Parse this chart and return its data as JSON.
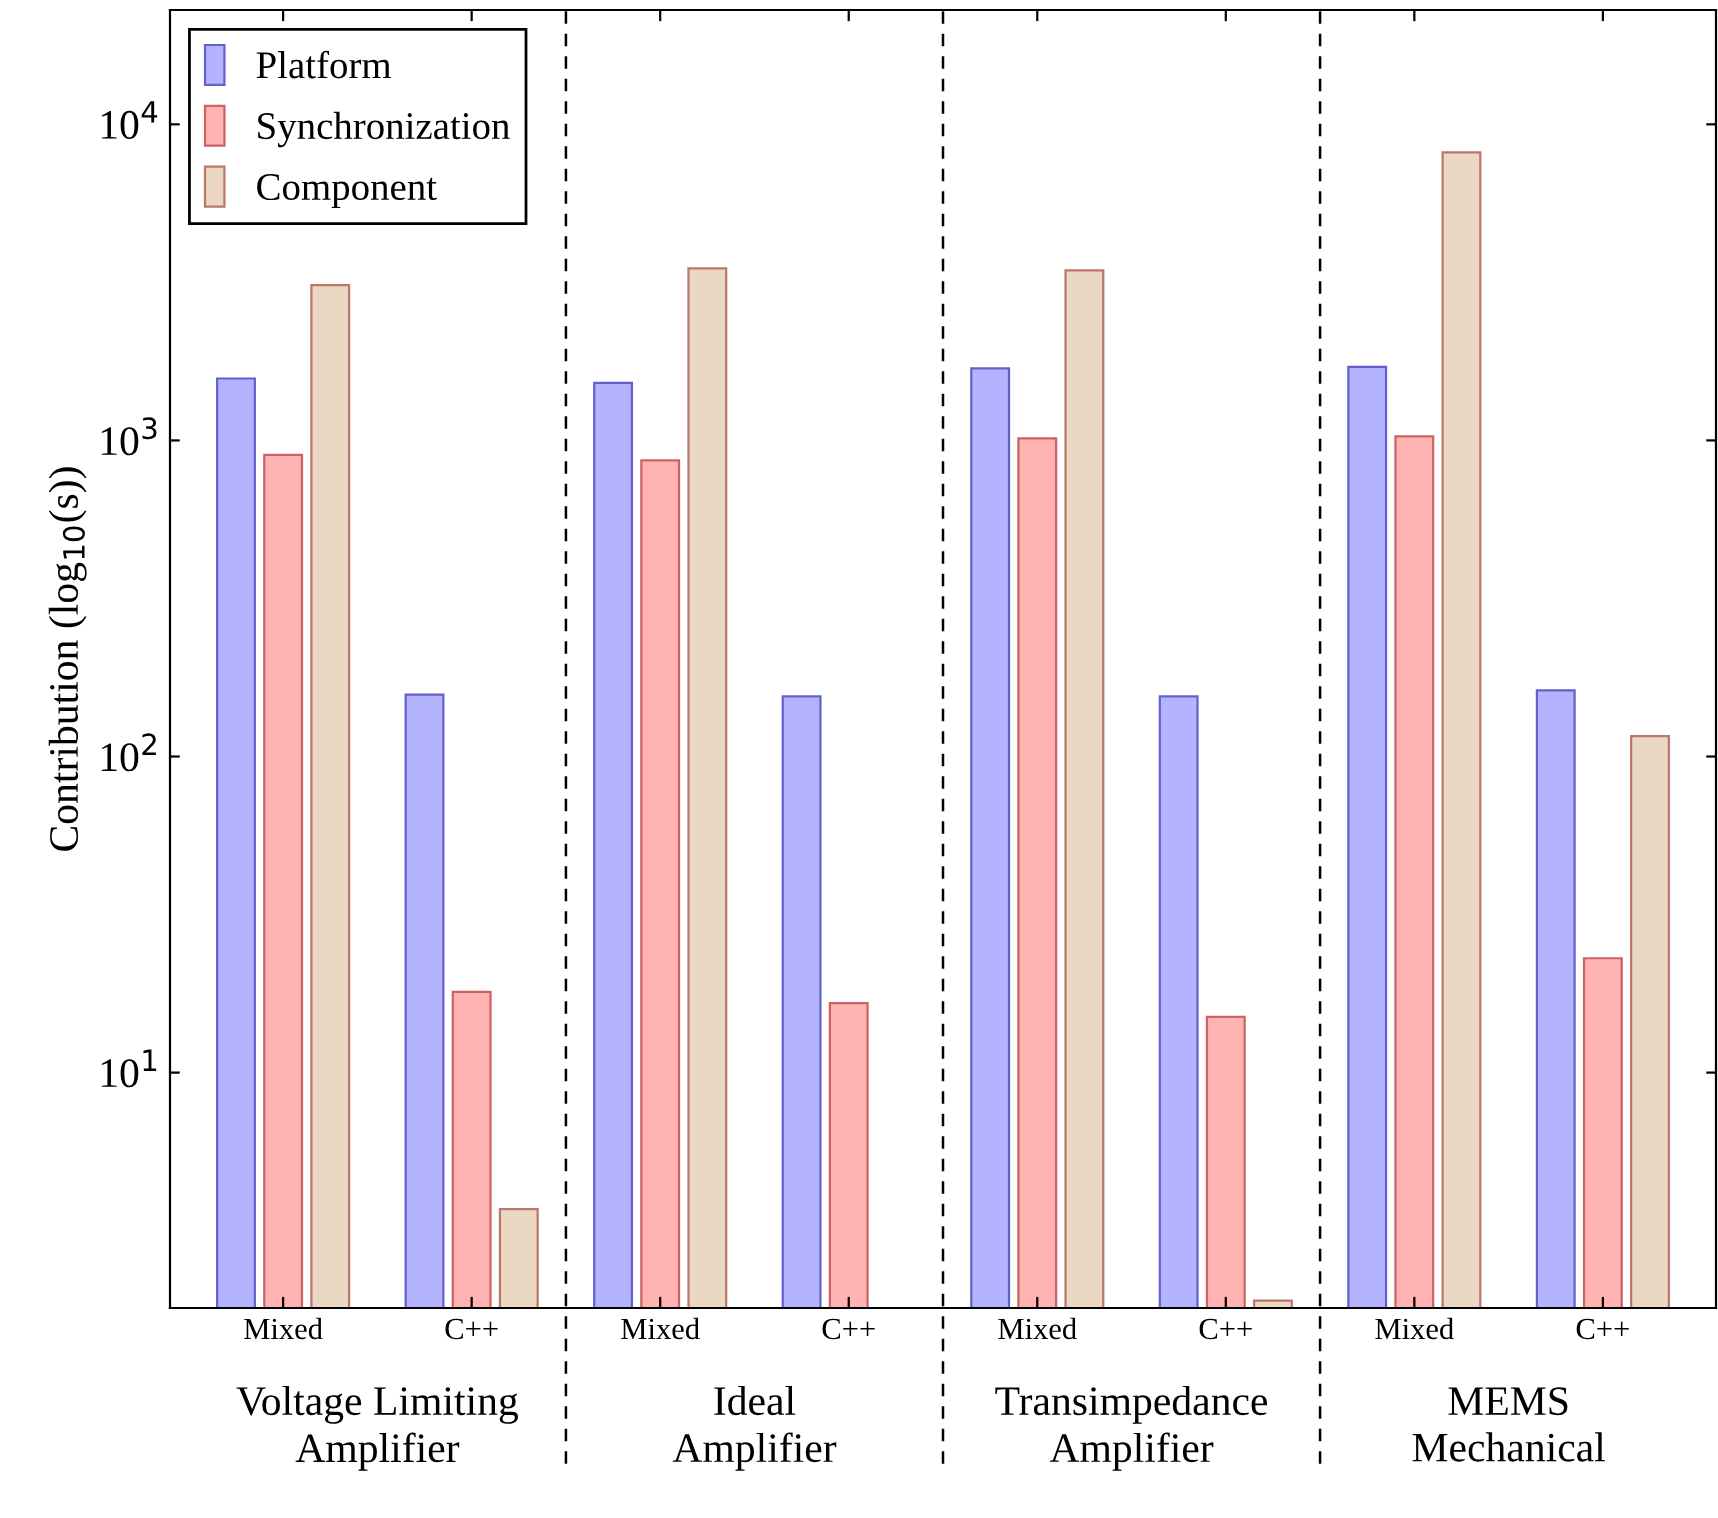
{
  "chart_data": {
    "type": "bar",
    "ylabel": "Contribution (log$_{10}$(s))",
    "categories": [
      "Mixed",
      "C++",
      "Mixed",
      "C++",
      "Mixed",
      "C++",
      "Mixed",
      "C++"
    ],
    "series": [
      {
        "name": "Platform",
        "color": "#b3b3ff",
        "values": [
          1570,
          157,
          1520,
          155,
          1690,
          155,
          1710,
          162
        ]
      },
      {
        "name": "Synchronization",
        "color": "#ffb3b3",
        "values": [
          900,
          18,
          865,
          16.6,
          1015,
          15,
          1030,
          23
        ]
      },
      {
        "name": "Component",
        "color": "#ead8c3",
        "values": [
          3100,
          3.7,
          3500,
          null,
          3450,
          1.9,
          8150,
          116
        ]
      }
    ],
    "annotations": [
      "Voltage Limiting\nAmplifier",
      "Ideal\nAmplifier",
      "Transimpedance\nAmplifier",
      "MEMS\nMechanical"
    ],
    "log": "y",
    "ylim": [
      1.8,
      23000
    ],
    "yticks": [
      {
        "value": 10,
        "label": "10$^{1}$"
      },
      {
        "value": 100,
        "label": "10$^{2}$"
      },
      {
        "value": 1000,
        "label": "10$^{3}$"
      },
      {
        "value": 10000,
        "label": "10$^{4}$"
      }
    ],
    "grid": false,
    "legend": "top left"
  }
}
